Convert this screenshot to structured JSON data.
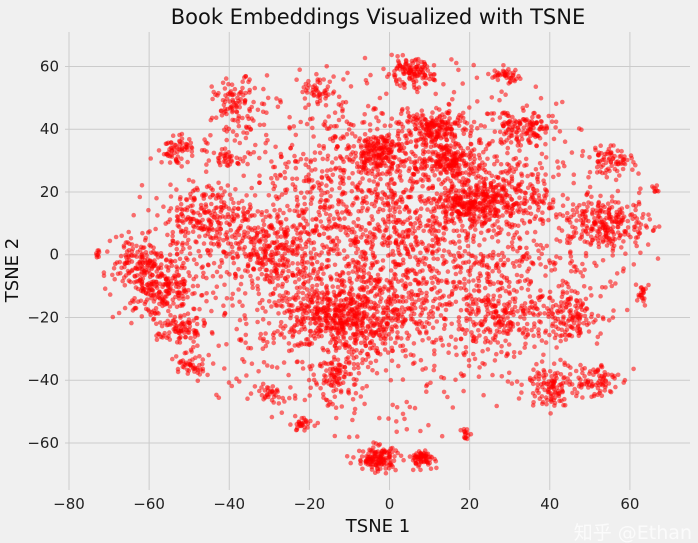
{
  "chart_data": {
    "type": "scatter",
    "title": "Book Embeddings Visualized with TSNE",
    "xlabel": "TSNE 1",
    "ylabel": "TSNE 2",
    "xlim": [
      -81,
      75
    ],
    "ylim": [
      -75,
      71
    ],
    "xticks": [
      -80,
      -60,
      -40,
      -20,
      0,
      20,
      40,
      60
    ],
    "yticks": [
      -60,
      -40,
      -20,
      0,
      20,
      40,
      60
    ],
    "xtick_labels": [
      "−80",
      "−60",
      "−40",
      "−20",
      "0",
      "20",
      "40",
      "60"
    ],
    "ytick_labels": [
      "−60",
      "−40",
      "−20",
      "0",
      "20",
      "40",
      "60"
    ],
    "grid": true,
    "legend": "none",
    "marker_color": "#ff0000",
    "marker_alpha": 0.55,
    "background": "#f0f0f0",
    "point_clusters_approx": [
      {
        "center": [
          0,
          5
        ],
        "spread": [
          26,
          24
        ],
        "count": 2600
      },
      {
        "center": [
          -15,
          -20
        ],
        "spread": [
          6,
          6
        ],
        "count": 300
      },
      {
        "center": [
          -57,
          -10
        ],
        "spread": [
          5,
          5
        ],
        "count": 260
      },
      {
        "center": [
          -63,
          -2
        ],
        "spread": [
          3,
          4
        ],
        "count": 100
      },
      {
        "center": [
          -52,
          -24
        ],
        "spread": [
          3,
          3
        ],
        "count": 90
      },
      {
        "center": [
          -50,
          -36
        ],
        "spread": [
          2,
          2
        ],
        "count": 40
      },
      {
        "center": [
          -53,
          33
        ],
        "spread": [
          2,
          2
        ],
        "count": 60
      },
      {
        "center": [
          -38,
          48
        ],
        "spread": [
          3,
          4
        ],
        "count": 100
      },
      {
        "center": [
          -40,
          31
        ],
        "spread": [
          2,
          1.5
        ],
        "count": 30
      },
      {
        "center": [
          -45,
          12
        ],
        "spread": [
          6,
          5
        ],
        "count": 200
      },
      {
        "center": [
          -18,
          52
        ],
        "spread": [
          2,
          2
        ],
        "count": 40
      },
      {
        "center": [
          -3,
          33
        ],
        "spread": [
          3,
          3
        ],
        "count": 150
      },
      {
        "center": [
          5,
          58
        ],
        "spread": [
          3,
          2
        ],
        "count": 120
      },
      {
        "center": [
          12,
          40
        ],
        "spread": [
          4,
          3
        ],
        "count": 180
      },
      {
        "center": [
          15,
          30
        ],
        "spread": [
          4,
          3
        ],
        "count": 180
      },
      {
        "center": [
          20,
          16
        ],
        "spread": [
          4,
          3
        ],
        "count": 200
      },
      {
        "center": [
          29,
          57
        ],
        "spread": [
          2,
          1.2
        ],
        "count": 40
      },
      {
        "center": [
          33,
          40
        ],
        "spread": [
          4,
          3
        ],
        "count": 120
      },
      {
        "center": [
          55,
          30
        ],
        "spread": [
          3,
          2
        ],
        "count": 70
      },
      {
        "center": [
          55,
          10
        ],
        "spread": [
          5,
          4
        ],
        "count": 220
      },
      {
        "center": [
          45,
          -20
        ],
        "spread": [
          4,
          4
        ],
        "count": 130
      },
      {
        "center": [
          40,
          -42
        ],
        "spread": [
          3,
          3
        ],
        "count": 110
      },
      {
        "center": [
          51,
          -40
        ],
        "spread": [
          3,
          3
        ],
        "count": 80
      },
      {
        "center": [
          28,
          -20
        ],
        "spread": [
          5,
          5
        ],
        "count": 160
      },
      {
        "center": [
          -13,
          -38
        ],
        "spread": [
          3,
          4
        ],
        "count": 110
      },
      {
        "center": [
          -3,
          -65
        ],
        "spread": [
          2.5,
          2
        ],
        "count": 140
      },
      {
        "center": [
          8,
          -65
        ],
        "spread": [
          1.6,
          1.3
        ],
        "count": 70
      },
      {
        "center": [
          19,
          -57
        ],
        "spread": [
          0.5,
          1
        ],
        "count": 15
      },
      {
        "center": [
          -22,
          -54
        ],
        "spread": [
          1.5,
          1
        ],
        "count": 30
      },
      {
        "center": [
          -30,
          -44
        ],
        "spread": [
          1.5,
          1.5
        ],
        "count": 30
      },
      {
        "center": [
          63,
          -13
        ],
        "spread": [
          0.7,
          1.5
        ],
        "count": 20
      },
      {
        "center": [
          -73,
          0
        ],
        "spread": [
          0.4,
          0.8
        ],
        "count": 8
      },
      {
        "center": [
          66,
          21
        ],
        "spread": [
          0.6,
          0.6
        ],
        "count": 8
      },
      {
        "center": [
          -5,
          -20
        ],
        "spread": [
          6,
          5
        ],
        "count": 200
      },
      {
        "center": [
          30,
          20
        ],
        "spread": [
          5,
          5
        ],
        "count": 150
      },
      {
        "center": [
          -30,
          0
        ],
        "spread": [
          6,
          6
        ],
        "count": 200
      }
    ]
  },
  "watermark": "知乎 @Ethan"
}
